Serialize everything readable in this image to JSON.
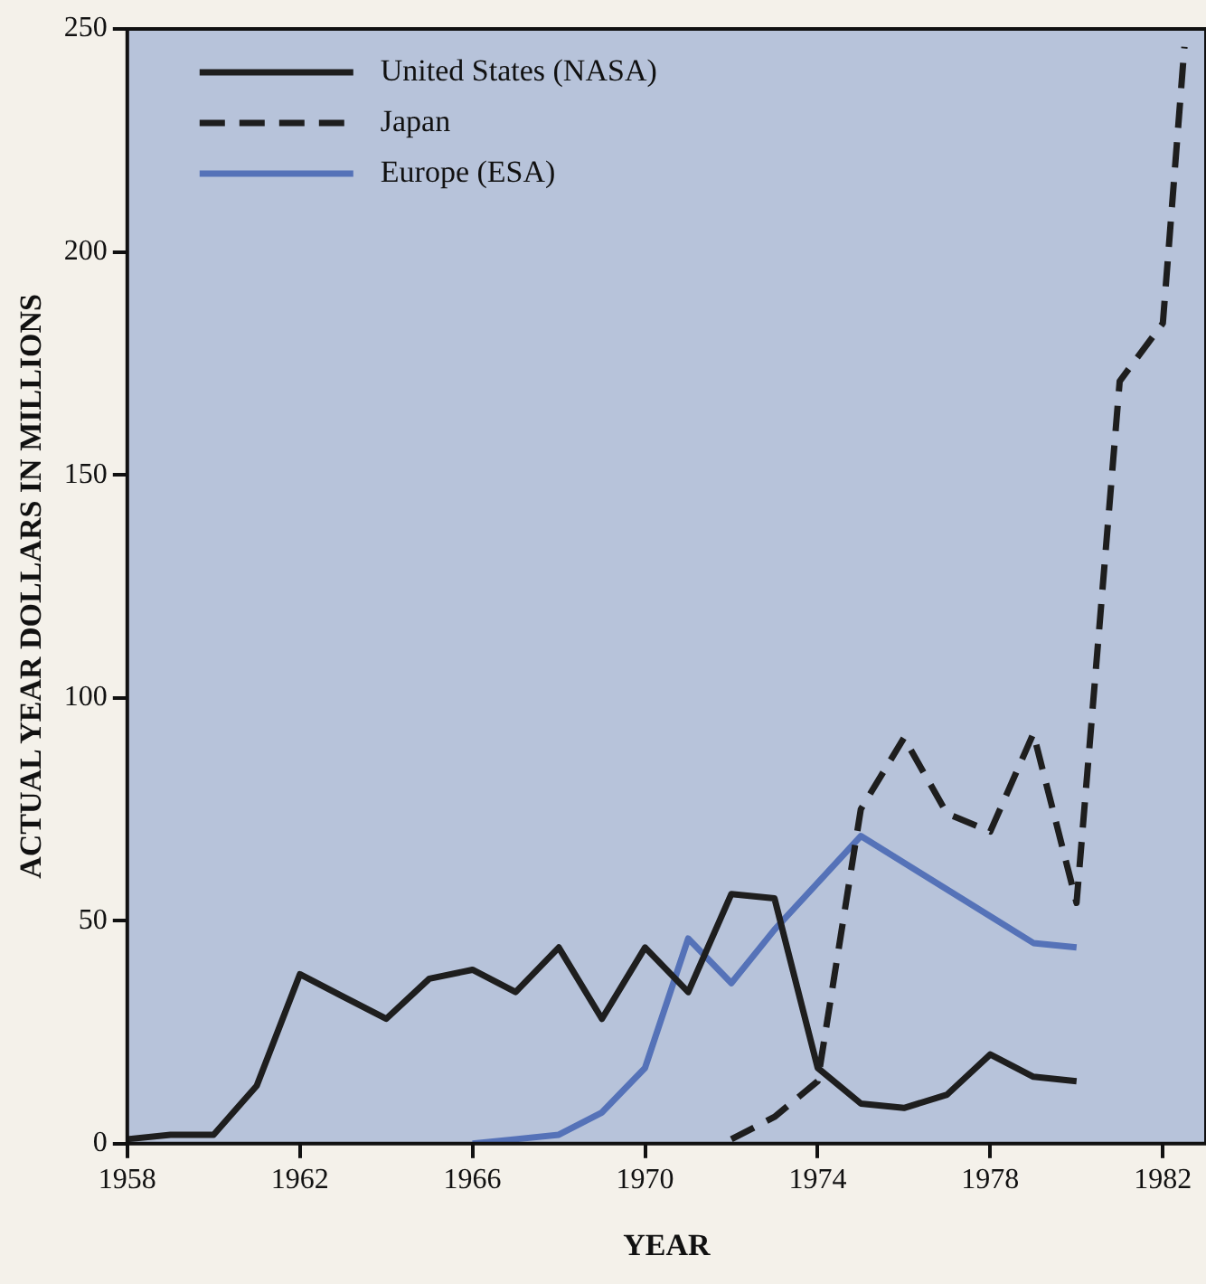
{
  "chart_data": {
    "type": "line",
    "xlabel": "YEAR",
    "ylabel": "ACTUAL YEAR DOLLARS IN MILLIONS",
    "xlim": [
      1958,
      1983
    ],
    "xticks": [
      1958,
      1962,
      1966,
      1970,
      1974,
      1978,
      1982
    ],
    "ylim": [
      0,
      250
    ],
    "yticks": [
      0,
      50,
      100,
      150,
      200,
      250
    ],
    "grid": false,
    "legend": "top left",
    "marker": "none",
    "series": [
      {
        "name": "United States (NASA)",
        "color": "#1e1e1e",
        "line_style": "solid",
        "x": [
          1958,
          1959,
          1960,
          1961,
          1962,
          1963,
          1964,
          1965,
          1966,
          1967,
          1968,
          1969,
          1970,
          1971,
          1972,
          1973,
          1974,
          1975,
          1976,
          1977,
          1978,
          1979,
          1980
        ],
        "values": [
          1,
          2,
          2,
          13,
          38,
          33,
          28,
          37,
          39,
          34,
          44,
          28,
          44,
          34,
          56,
          55,
          17,
          9,
          8,
          11,
          20,
          15,
          14
        ]
      },
      {
        "name": "Japan",
        "color": "#1e1e1e",
        "line_style": "dashed",
        "x": [
          1972,
          1973,
          1974,
          1975,
          1976,
          1977,
          1978,
          1979,
          1980,
          1981,
          1982,
          1982.5
        ],
        "values": [
          1,
          6,
          14,
          75,
          91,
          74,
          70,
          92,
          54,
          171,
          184,
          246
        ]
      },
      {
        "name": "Europe (ESA)",
        "color": "#5572b8",
        "line_style": "solid",
        "x": [
          1966,
          1967,
          1968,
          1969,
          1970,
          1971,
          1972,
          1973,
          1975,
          1979,
          1980
        ],
        "values": [
          0,
          1,
          2,
          7,
          17,
          46,
          36,
          48,
          69,
          45,
          44
        ]
      }
    ]
  }
}
